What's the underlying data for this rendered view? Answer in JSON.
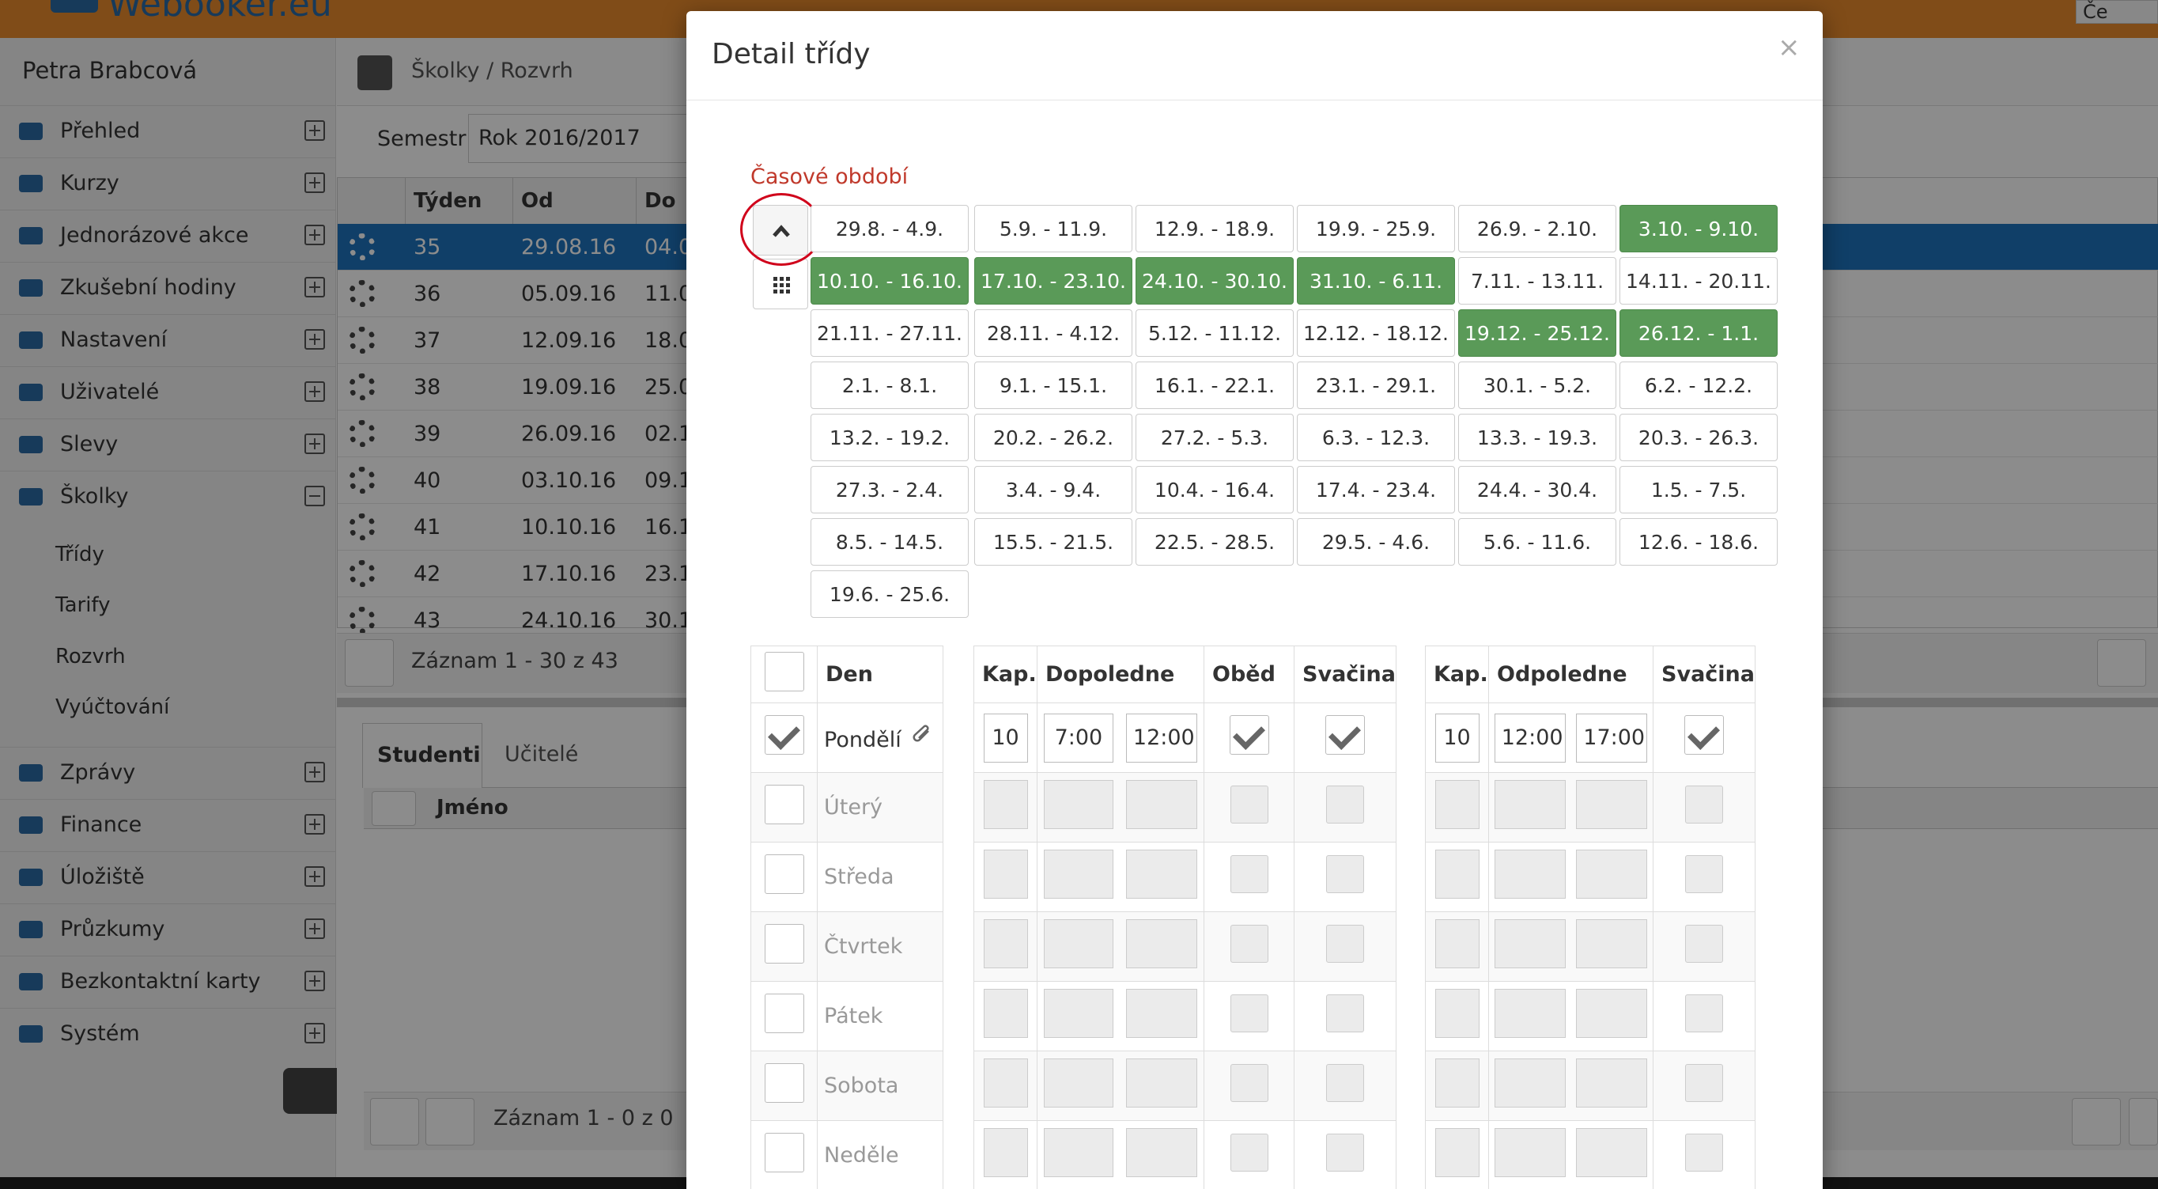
{
  "app": {
    "logo": "Webooker.eu",
    "lang": "Če",
    "user_name": "Petra Brabcová",
    "breadcrumb": "Školky / Rozvrh"
  },
  "sidebar": {
    "items": [
      {
        "label": "Přehled",
        "icon": "home-icon"
      },
      {
        "label": "Kurzy",
        "icon": "book-icon"
      },
      {
        "label": "Jednorázové akce",
        "icon": "soccer-ball-icon"
      },
      {
        "label": "Zkušební hodiny",
        "icon": "eye-icon"
      },
      {
        "label": "Nastavení",
        "icon": "settings-list-icon"
      },
      {
        "label": "Uživatelé",
        "icon": "users-icon"
      },
      {
        "label": "Slevy",
        "icon": "gift-icon"
      },
      {
        "label": "Školky",
        "icon": "child-icon"
      }
    ],
    "subitems": [
      "Třídy",
      "Tarify",
      "Rozvrh",
      "Vyúčtování"
    ],
    "items2": [
      {
        "label": "Zprávy",
        "icon": "envelope-icon"
      },
      {
        "label": "Finance",
        "icon": "money-icon"
      },
      {
        "label": "Úložiště",
        "icon": "database-icon"
      },
      {
        "label": "Průzkumy",
        "icon": "question-icon"
      },
      {
        "label": "Bezkontaktní karty",
        "icon": "card-icon"
      },
      {
        "label": "Systém",
        "icon": "gears-icon"
      }
    ]
  },
  "main": {
    "semestr_label": "Semestr:",
    "semestr_value": "Rok 2016/2017",
    "columns": [
      "Týden",
      "Od",
      "Do"
    ],
    "rows": [
      {
        "week": "35",
        "from": "29.08.16",
        "to": "04.0"
      },
      {
        "week": "36",
        "from": "05.09.16",
        "to": "11.0"
      },
      {
        "week": "37",
        "from": "12.09.16",
        "to": "18.0"
      },
      {
        "week": "38",
        "from": "19.09.16",
        "to": "25.0"
      },
      {
        "week": "39",
        "from": "26.09.16",
        "to": "02.1"
      },
      {
        "week": "40",
        "from": "03.10.16",
        "to": "09.1"
      },
      {
        "week": "41",
        "from": "10.10.16",
        "to": "16.1"
      },
      {
        "week": "42",
        "from": "17.10.16",
        "to": "23.1"
      },
      {
        "week": "43",
        "from": "24.10.16",
        "to": "30.1"
      }
    ],
    "pager": "Záznam 1 - 30 z 43",
    "tabs": [
      "Studenti",
      "Učitelé"
    ],
    "sub_column": "Jméno",
    "sub_pager": "Záznam 1 - 0 z 0"
  },
  "modal": {
    "title": "Detail třídy",
    "close": "×",
    "period_label": "Časové období",
    "weeks": [
      {
        "label": "29.8. - 4.9.",
        "on": false
      },
      {
        "label": "5.9. - 11.9.",
        "on": false
      },
      {
        "label": "12.9. - 18.9.",
        "on": false
      },
      {
        "label": "19.9. - 25.9.",
        "on": false
      },
      {
        "label": "26.9. - 2.10.",
        "on": false
      },
      {
        "label": "3.10. - 9.10.",
        "on": true
      },
      {
        "label": "10.10. - 16.10.",
        "on": true
      },
      {
        "label": "17.10. - 23.10.",
        "on": true
      },
      {
        "label": "24.10. - 30.10.",
        "on": true
      },
      {
        "label": "31.10. - 6.11.",
        "on": true
      },
      {
        "label": "7.11. - 13.11.",
        "on": false
      },
      {
        "label": "14.11. - 20.11.",
        "on": false
      },
      {
        "label": "21.11. - 27.11.",
        "on": false
      },
      {
        "label": "28.11. - 4.12.",
        "on": false
      },
      {
        "label": "5.12. - 11.12.",
        "on": false
      },
      {
        "label": "12.12. - 18.12.",
        "on": false
      },
      {
        "label": "19.12. - 25.12.",
        "on": true
      },
      {
        "label": "26.12. - 1.1.",
        "on": true
      },
      {
        "label": "2.1. - 8.1.",
        "on": false
      },
      {
        "label": "9.1. - 15.1.",
        "on": false
      },
      {
        "label": "16.1. - 22.1.",
        "on": false
      },
      {
        "label": "23.1. - 29.1.",
        "on": false
      },
      {
        "label": "30.1. - 5.2.",
        "on": false
      },
      {
        "label": "6.2. - 12.2.",
        "on": false
      },
      {
        "label": "13.2. - 19.2.",
        "on": false
      },
      {
        "label": "20.2. - 26.2.",
        "on": false
      },
      {
        "label": "27.2. - 5.3.",
        "on": false
      },
      {
        "label": "6.3. - 12.3.",
        "on": false
      },
      {
        "label": "13.3. - 19.3.",
        "on": false
      },
      {
        "label": "20.3. - 26.3.",
        "on": false
      },
      {
        "label": "27.3. - 2.4.",
        "on": false
      },
      {
        "label": "3.4. - 9.4.",
        "on": false
      },
      {
        "label": "10.4. - 16.4.",
        "on": false
      },
      {
        "label": "17.4. - 23.4.",
        "on": false
      },
      {
        "label": "24.4. - 30.4.",
        "on": false
      },
      {
        "label": "1.5. - 7.5.",
        "on": false
      },
      {
        "label": "8.5. - 14.5.",
        "on": false
      },
      {
        "label": "15.5. - 21.5.",
        "on": false
      },
      {
        "label": "22.5. - 28.5.",
        "on": false
      },
      {
        "label": "29.5. - 4.6.",
        "on": false
      },
      {
        "label": "5.6. - 11.6.",
        "on": false
      },
      {
        "label": "12.6. - 18.6.",
        "on": false
      },
      {
        "label": "19.6. - 25.6.",
        "on": false
      }
    ],
    "table_days": {
      "header": "Den",
      "days": [
        "Pondělí",
        "Úterý",
        "Středa",
        "Čtvrtek",
        "Pátek",
        "Sobota",
        "Neděle"
      ]
    },
    "table_am": {
      "headers": [
        "Kap.",
        "Dopoledne",
        "Oběd",
        "Svačina"
      ],
      "first_row": {
        "cap": "10",
        "from": "7:00",
        "to": "12:00"
      }
    },
    "table_pm": {
      "headers": [
        "Kap.",
        "Odpoledne",
        "Svačina"
      ],
      "first_row": {
        "cap": "10",
        "from": "12:00",
        "to": "17:00"
      }
    }
  }
}
